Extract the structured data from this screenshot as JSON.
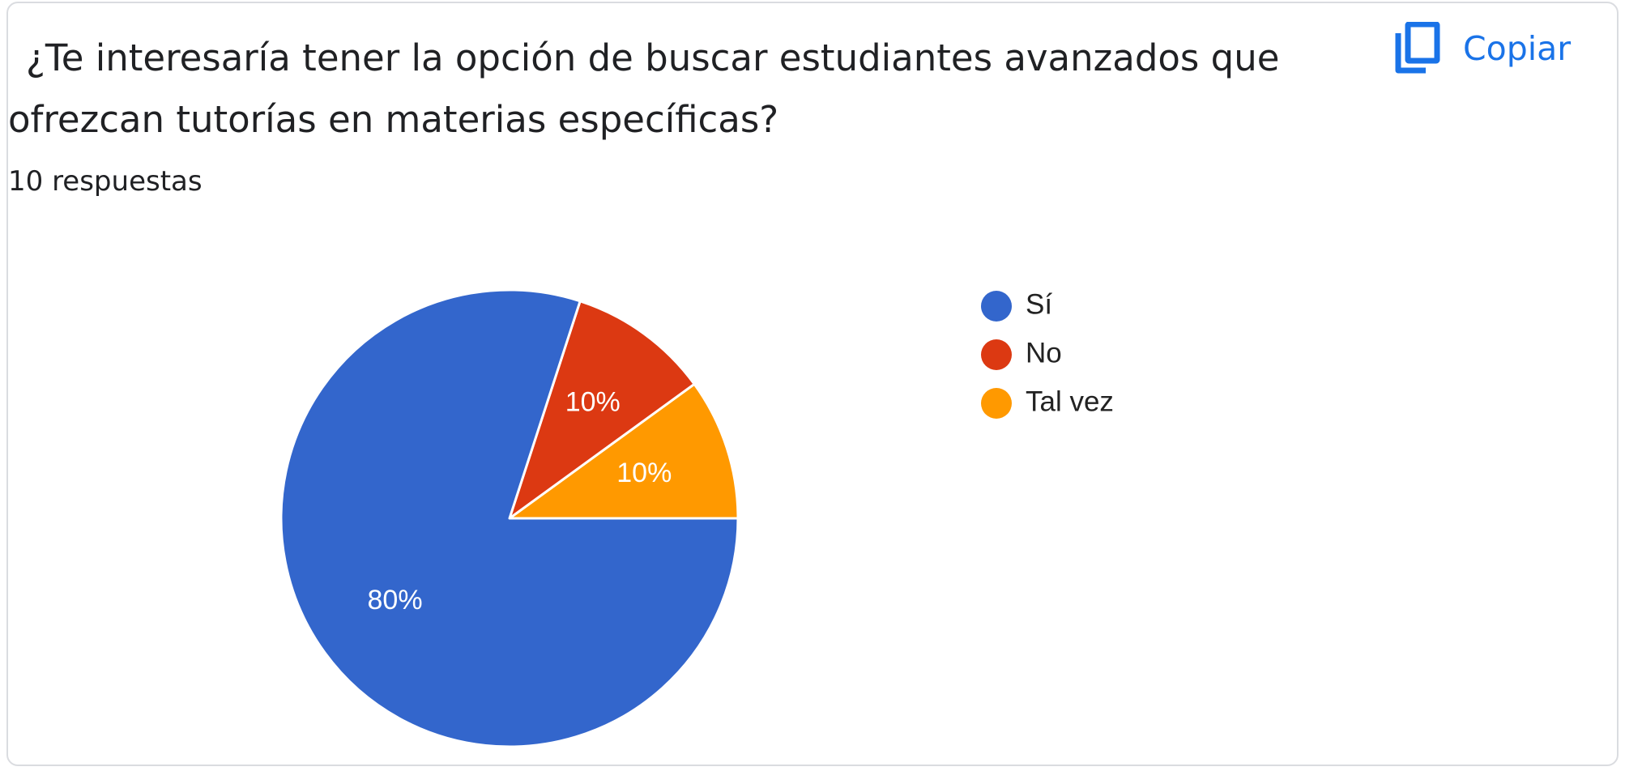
{
  "question": {
    "title": "¿Te interesaría tener la opción de buscar estudiantes avanzados que ofrezcan tutorías en materias específicas?",
    "response_count": "10 respuestas"
  },
  "toolbar": {
    "copy_label": "Copiar",
    "copy_icon": "copy-icon"
  },
  "chart_data": {
    "type": "pie",
    "slices": [
      {
        "label": "Sí",
        "value": 80,
        "display": "80%",
        "color": "#3366cc"
      },
      {
        "label": "No",
        "value": 10,
        "display": "10%",
        "color": "#dc3912"
      },
      {
        "label": "Tal vez",
        "value": 10,
        "display": "10%",
        "color": "#ff9900"
      }
    ],
    "legend_position": "right"
  }
}
